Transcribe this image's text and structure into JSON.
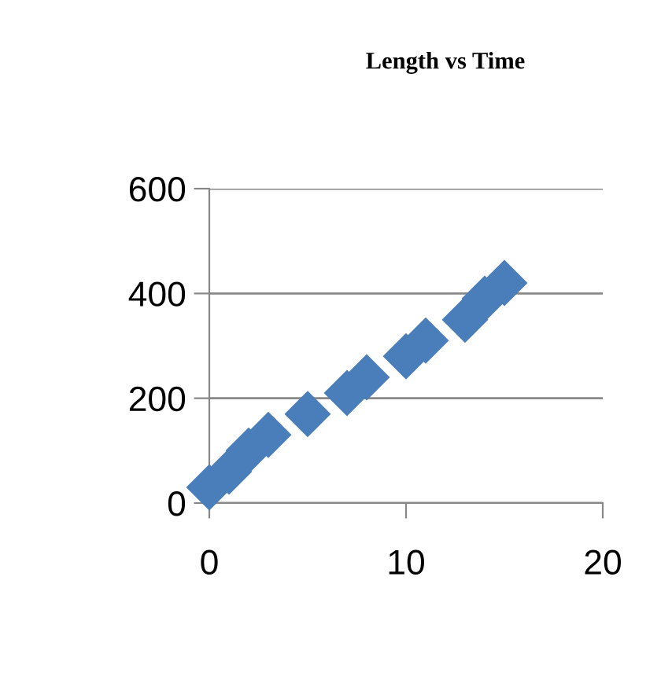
{
  "chart_data": {
    "type": "scatter",
    "title": "Length vs Time",
    "x": [
      0,
      1,
      2,
      3,
      5,
      7,
      8,
      10,
      11,
      13,
      14,
      15
    ],
    "values": [
      30,
      60,
      100,
      130,
      170,
      210,
      240,
      280,
      310,
      350,
      390,
      420
    ],
    "color": "#4a7ebb",
    "marker": "diamond",
    "xlim": [
      0,
      20
    ],
    "xticks": [
      0,
      10,
      20
    ],
    "ylim": [
      0,
      600
    ],
    "yticks": [
      0,
      200,
      400,
      600
    ],
    "grid": "y"
  }
}
